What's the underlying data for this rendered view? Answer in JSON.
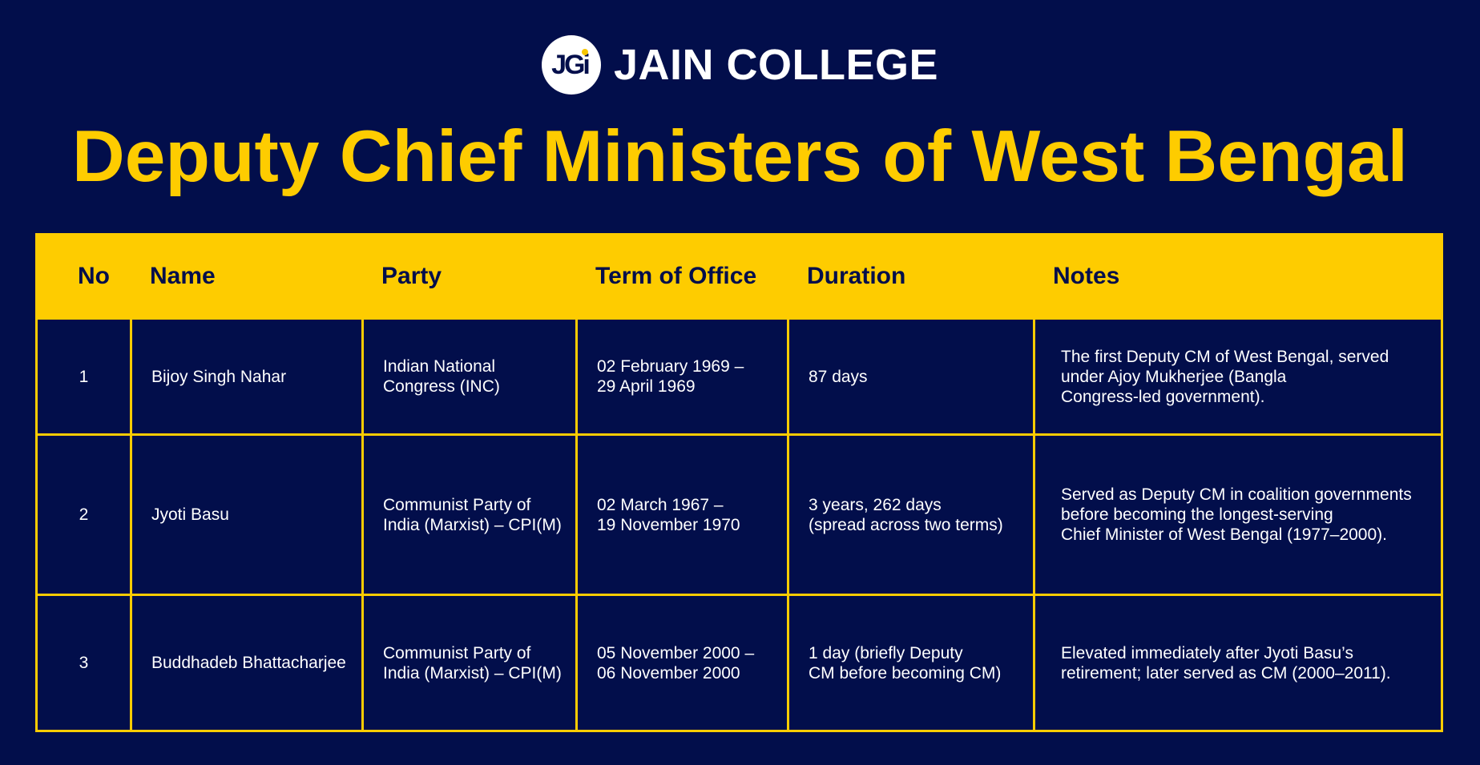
{
  "brand": {
    "logo_text": "JGi",
    "name": "JAIN COLLEGE"
  },
  "title": "Deputy Chief Ministers of West Bengal",
  "table": {
    "headers": [
      "No",
      "Name",
      "Party",
      "Term of Office",
      "Duration",
      "Notes"
    ],
    "rows": [
      {
        "no": "1",
        "name": "Bijoy Singh Nahar",
        "party": "Indian National\nCongress (INC)",
        "term": "02 February 1969 –\n29 April 1969",
        "duration": "87 days",
        "notes": "The first Deputy CM of West Bengal, served\nunder Ajoy Mukherjee (Bangla\nCongress-led government)."
      },
      {
        "no": "2",
        "name": "Jyoti Basu",
        "party": "Communist Party of\nIndia (Marxist) – CPI(M)",
        "term": "02 March 1967 –\n19 November 1970",
        "duration": "3 years, 262 days\n(spread across two terms)",
        "notes": "Served as Deputy CM in coalition governments\nbefore becoming the longest-serving\nChief Minister of West Bengal (1977–2000)."
      },
      {
        "no": "3",
        "name": "Buddhadeb Bhattacharjee",
        "party": "Communist Party of\nIndia (Marxist) – CPI(M)",
        "term": "05 November 2000 –\n06 November 2000",
        "duration": "1 day (briefly Deputy\nCM before becoming CM)",
        "notes": "Elevated immediately after Jyoti Basu’s\nretirement; later served as CM (2000–2011)."
      }
    ]
  },
  "colors": {
    "background": "#020e4b",
    "accent": "#fecc00",
    "text": "#ffffff"
  }
}
